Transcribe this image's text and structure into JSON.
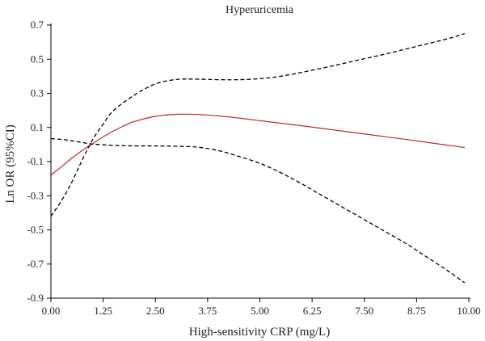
{
  "chart_data": {
    "type": "line",
    "title": "Hyperuricemia",
    "xlabel": "High-sensitivity CRP (mg/L)",
    "ylabel": "Ln OR (95%CI)",
    "xlim": [
      0,
      10
    ],
    "ylim": [
      -0.9,
      0.7
    ],
    "x_ticks": [
      "0.00",
      "1.25",
      "2.50",
      "3.75",
      "5.00",
      "6.25",
      "7.50",
      "8.75",
      "10.00"
    ],
    "y_ticks": [
      "0.7",
      "0.5",
      "0.3",
      "0.1",
      "-0.1",
      "-0.3",
      "-0.5",
      "-0.7",
      "-0.9"
    ],
    "grid": false,
    "legend": "none",
    "series": [
      {
        "role": "estimate",
        "color": "#c0282d",
        "style": "solid",
        "points": [
          [
            0,
            -0.18
          ],
          [
            0.25,
            -0.13
          ],
          [
            0.5,
            -0.08
          ],
          [
            0.75,
            -0.035
          ],
          [
            1,
            0.005
          ],
          [
            1.25,
            0.045
          ],
          [
            1.5,
            0.08
          ],
          [
            1.75,
            0.11
          ],
          [
            2,
            0.135
          ],
          [
            2.5,
            0.165
          ],
          [
            3,
            0.177
          ],
          [
            3.5,
            0.176
          ],
          [
            4,
            0.168
          ],
          [
            4.5,
            0.155
          ],
          [
            5,
            0.14
          ],
          [
            5.5,
            0.125
          ],
          [
            6,
            0.11
          ],
          [
            6.5,
            0.094
          ],
          [
            7,
            0.078
          ],
          [
            7.5,
            0.062
          ],
          [
            8,
            0.046
          ],
          [
            8.5,
            0.03
          ],
          [
            9,
            0.013
          ],
          [
            9.5,
            -0.004
          ],
          [
            9.9,
            -0.017
          ]
        ]
      },
      {
        "role": "upper-ci",
        "color": "#000000",
        "style": "dashed",
        "points": [
          [
            0,
            -0.42
          ],
          [
            0.25,
            -0.33
          ],
          [
            0.5,
            -0.22
          ],
          [
            0.75,
            -0.09
          ],
          [
            1,
            0.03
          ],
          [
            1.25,
            0.12
          ],
          [
            1.5,
            0.2
          ],
          [
            2,
            0.29
          ],
          [
            2.5,
            0.355
          ],
          [
            3,
            0.381
          ],
          [
            3.5,
            0.383
          ],
          [
            4,
            0.38
          ],
          [
            4.5,
            0.38
          ],
          [
            5,
            0.386
          ],
          [
            5.5,
            0.4
          ],
          [
            6,
            0.423
          ],
          [
            6.5,
            0.448
          ],
          [
            7,
            0.475
          ],
          [
            7.5,
            0.503
          ],
          [
            8,
            0.53
          ],
          [
            8.5,
            0.56
          ],
          [
            9,
            0.59
          ],
          [
            9.5,
            0.62
          ],
          [
            9.9,
            0.65
          ]
        ]
      },
      {
        "role": "lower-ci",
        "color": "#000000",
        "style": "dashed",
        "points": [
          [
            0,
            0.035
          ],
          [
            0.25,
            0.03
          ],
          [
            0.5,
            0.022
          ],
          [
            0.75,
            0.012
          ],
          [
            1,
            0.003
          ],
          [
            1.5,
            -0.005
          ],
          [
            2,
            -0.008
          ],
          [
            2.5,
            -0.008
          ],
          [
            3,
            -0.01
          ],
          [
            3.5,
            -0.015
          ],
          [
            4,
            -0.035
          ],
          [
            4.5,
            -0.07
          ],
          [
            5,
            -0.11
          ],
          [
            5.5,
            -0.165
          ],
          [
            6,
            -0.23
          ],
          [
            6.5,
            -0.3
          ],
          [
            7,
            -0.37
          ],
          [
            7.5,
            -0.44
          ],
          [
            8,
            -0.51
          ],
          [
            8.5,
            -0.58
          ],
          [
            9,
            -0.66
          ],
          [
            9.5,
            -0.74
          ],
          [
            9.9,
            -0.81
          ]
        ]
      }
    ]
  }
}
